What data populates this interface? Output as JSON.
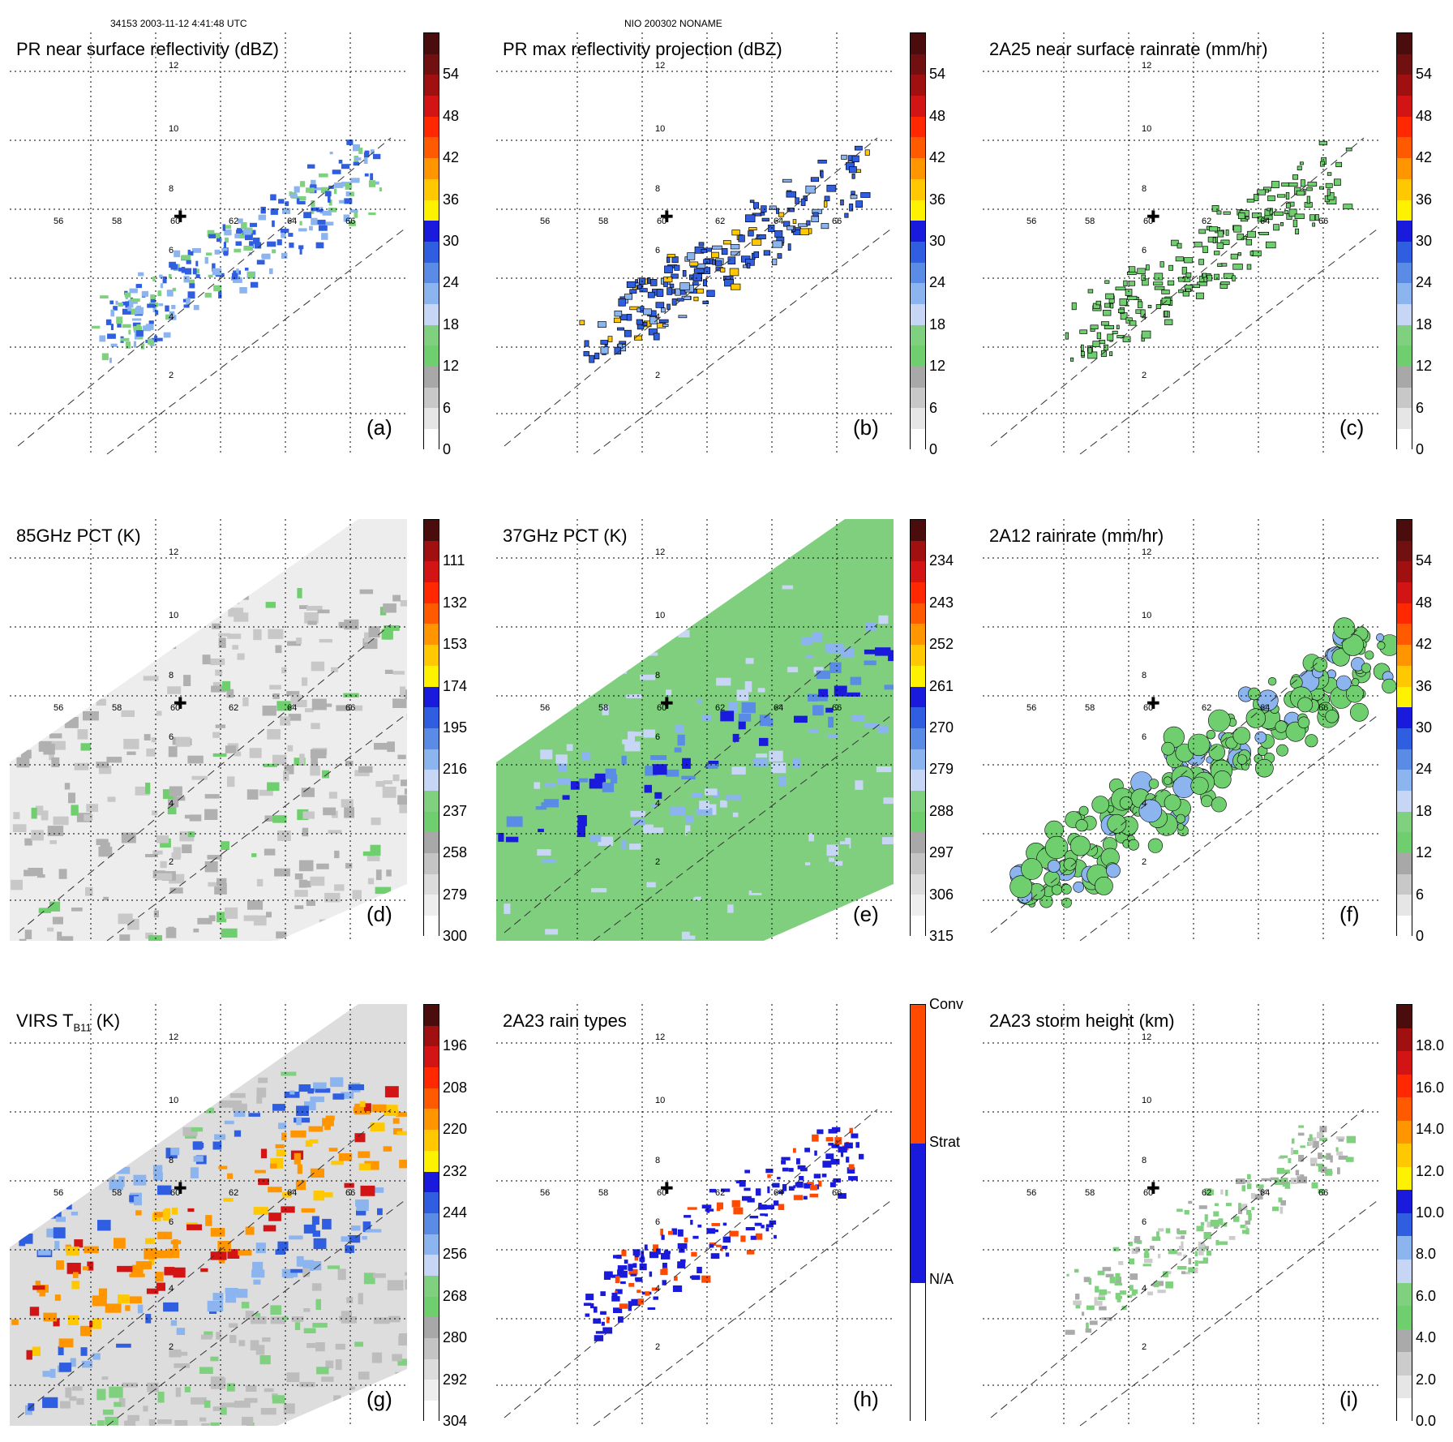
{
  "header": {
    "left": "34153 2003-11-12 4:41:48 UTC",
    "center": "NIO 200302 NONAME"
  },
  "grid": {
    "lon_labels": [
      "56",
      "58",
      "60",
      "62",
      "64",
      "66"
    ],
    "lat_labels": [
      "2",
      "4",
      "6",
      "8",
      "10",
      "12"
    ]
  },
  "palettes": {
    "reflectivity": [
      "#ffffff",
      "#e6e6e6",
      "#c8c8c8",
      "#a8a8a8",
      "#6fcf6f",
      "#7fd07f",
      "#c6d6f4",
      "#8cb4ee",
      "#5a8ce6",
      "#2f5ee0",
      "#1a1adc",
      "#fff200",
      "#ffc800",
      "#ff9600",
      "#ff5a00",
      "#ff2800",
      "#d21414",
      "#a01010",
      "#701010",
      "#4a0c0c"
    ],
    "pct": [
      "#ffffff",
      "#eeeeee",
      "#dcdcdc",
      "#c4c4c4",
      "#a8a8a8",
      "#6fcf6f",
      "#7fd07f",
      "#c6d6f4",
      "#8cb4ee",
      "#5a8ce6",
      "#2f5ee0",
      "#1a1adc",
      "#fff200",
      "#ffc800",
      "#ff9600",
      "#ff5a00",
      "#ff2800",
      "#d21414",
      "#a01010",
      "#4a0c0c"
    ],
    "rain_types": [
      "#ffffff",
      "#1a1adc",
      "#ff4a00"
    ],
    "storm_height": [
      "#ffffff",
      "#e6e6e6",
      "#cccccc",
      "#aaaaaa",
      "#6fcf6f",
      "#7fd07f",
      "#c6d6f4",
      "#8cb4ee",
      "#2f5ee0",
      "#1a1adc",
      "#fff200",
      "#ffc800",
      "#ff9600",
      "#ff5a00",
      "#ff2800",
      "#d21414",
      "#a01010",
      "#4a0c0c"
    ]
  },
  "panels": [
    {
      "id": "a",
      "title": "PR near surface reflectivity (dBZ)",
      "label": "(a)",
      "ticks": [
        "0",
        "6",
        "12",
        "18",
        "24",
        "30",
        "36",
        "42",
        "48",
        "54"
      ],
      "palette": "reflectivity",
      "style": "swath-sparse",
      "dashed": true,
      "cross": true
    },
    {
      "id": "b",
      "title": "PR max reflectivity projection (dBZ)",
      "label": "(b)",
      "ticks": [
        "0",
        "6",
        "12",
        "18",
        "24",
        "30",
        "36",
        "42",
        "48",
        "54"
      ],
      "palette": "reflectivity",
      "style": "swath-outline",
      "dashed": true,
      "cross": true
    },
    {
      "id": "c",
      "title": "2A25 near surface rainrate (mm/hr)",
      "label": "(c)",
      "ticks": [
        "0",
        "6",
        "12",
        "18",
        "24",
        "30",
        "36",
        "42",
        "48",
        "54"
      ],
      "palette": "reflectivity",
      "style": "swath-green",
      "dashed": true,
      "cross": true
    },
    {
      "id": "d",
      "title": "85GHz PCT (K)",
      "label": "(d)",
      "ticks": [
        "300",
        "279",
        "258",
        "237",
        "216",
        "195",
        "174",
        "153",
        "132",
        "111"
      ],
      "palette": "pct",
      "style": "grey-swath",
      "dashed": true,
      "cross": true
    },
    {
      "id": "e",
      "title": "37GHz PCT (K)",
      "label": "(e)",
      "ticks": [
        "315",
        "306",
        "297",
        "288",
        "279",
        "270",
        "261",
        "252",
        "243",
        "234"
      ],
      "palette": "pct",
      "style": "green-swath",
      "dashed": true,
      "cross": true
    },
    {
      "id": "f",
      "title": "2A12 rainrate (mm/hr)",
      "label": "(f)",
      "ticks": [
        "0",
        "6",
        "12",
        "18",
        "24",
        "30",
        "36",
        "42",
        "48",
        "54"
      ],
      "palette": "reflectivity",
      "style": "green-blobs",
      "dashed": true,
      "cross": true
    },
    {
      "id": "g",
      "title_main": "VIRS T",
      "title_sub": "B11",
      "title_tail": " (K)",
      "label": "(g)",
      "ticks": [
        "304",
        "292",
        "280",
        "268",
        "256",
        "244",
        "232",
        "220",
        "208",
        "196"
      ],
      "palette": "pct",
      "style": "ir-swath",
      "dashed": true,
      "cross": true
    },
    {
      "id": "h",
      "title": "2A23 rain types",
      "label": "(h)",
      "ticks": [
        "N/A",
        "Strat",
        "Conv"
      ],
      "palette": "rain_types",
      "style": "rain-types",
      "dashed": true,
      "cross": true
    },
    {
      "id": "i",
      "title": "2A23 storm height (km)",
      "label": "(i)",
      "ticks": [
        "0.0",
        "2.0",
        "4.0",
        "6.0",
        "8.0",
        "10.0",
        "12.0",
        "14.0",
        "16.0",
        "18.0"
      ],
      "palette": "storm_height",
      "style": "storm-height",
      "dashed": true,
      "cross": true
    }
  ]
}
